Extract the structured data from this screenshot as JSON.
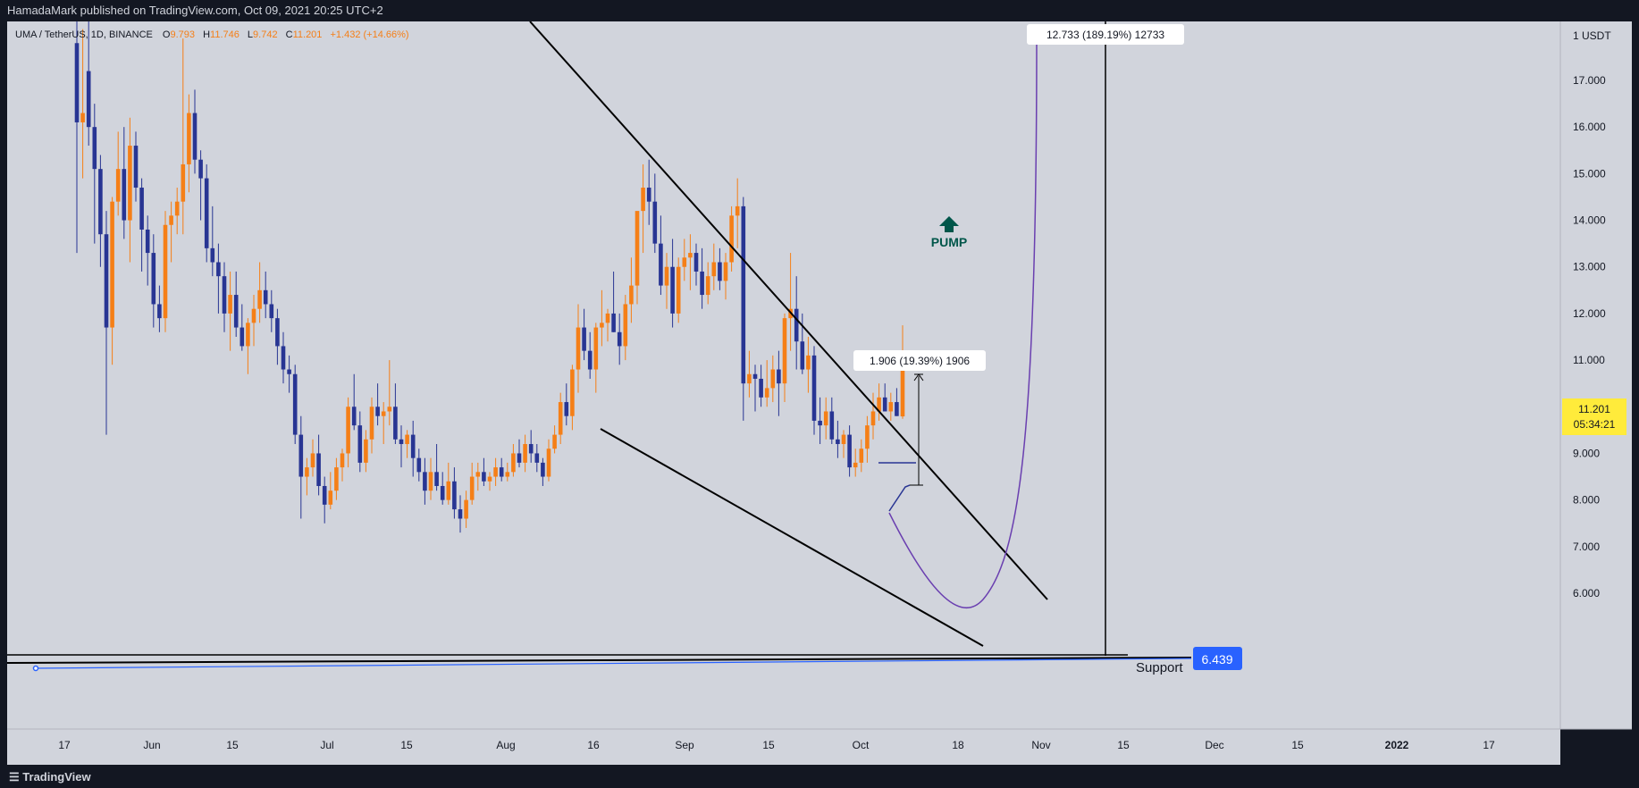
{
  "header": {
    "published": "HamadaMark published on TradingView.com, Oct 09, 2021 20:25 UTC+2"
  },
  "footer": {
    "brand": "TradingView"
  },
  "legend": {
    "symbol": "UMA / TetherUS, 1D, BINANCE",
    "open_label": "O",
    "open": "9.793",
    "high_label": "H",
    "high": "11.746",
    "low_label": "L",
    "low": "9.742",
    "close_label": "C",
    "close": "11.201",
    "change": "+1.432 (+14.66%)"
  },
  "price_axis": {
    "unit_label": "1 USDT",
    "ticks": [
      "17.000",
      "16.000",
      "15.000",
      "14.000",
      "13.000",
      "12.000",
      "11.000",
      "10.000",
      "9.000",
      "8.000",
      "7.000",
      "6.000"
    ],
    "current_price": "11.201",
    "countdown": "05:34:21",
    "support_price": "6.439"
  },
  "time_axis": {
    "ticks": [
      "17",
      "Jun",
      "15",
      "Jul",
      "15",
      "Aug",
      "16",
      "Sep",
      "15",
      "Oct",
      "18",
      "Nov",
      "15",
      "Dec",
      "15",
      "2022",
      "17"
    ]
  },
  "annotations": {
    "pump_text": "PUMP",
    "support_text": "Support",
    "measure_small": "1.906 (19.39%) 1906",
    "measure_big": "12.733 (189.19%) 12733"
  },
  "colors": {
    "background": "#d1d4dc",
    "up": "#f57f17",
    "down": "#283593",
    "pump": "#00564a",
    "projection": "#6a3fb0",
    "price_tag": "#ffeb3b",
    "support_tag": "#2962ff"
  },
  "chart_data": {
    "type": "candlestick",
    "symbol": "UMA / TetherUS",
    "interval": "1D",
    "exchange": "BINANCE",
    "y_axis_range": [
      5.4,
      18.2
    ],
    "y_scale": "linear",
    "grid": false,
    "candles": [
      {
        "o": 17.8,
        "h": 18.6,
        "l": 13.3,
        "c": 16.1
      },
      {
        "o": 16.1,
        "h": 18.1,
        "l": 14.9,
        "c": 16.3
      },
      {
        "o": 17.2,
        "h": 18.4,
        "l": 15.6,
        "c": 16.0
      },
      {
        "o": 16.0,
        "h": 16.5,
        "l": 13.5,
        "c": 15.1
      },
      {
        "o": 15.1,
        "h": 15.4,
        "l": 13.0,
        "c": 13.7
      },
      {
        "o": 13.7,
        "h": 14.2,
        "l": 9.4,
        "c": 11.7
      },
      {
        "o": 11.7,
        "h": 14.5,
        "l": 10.9,
        "c": 14.4
      },
      {
        "o": 14.4,
        "h": 15.9,
        "l": 14.1,
        "c": 15.1
      },
      {
        "o": 15.1,
        "h": 16.0,
        "l": 13.6,
        "c": 14.0
      },
      {
        "o": 14.0,
        "h": 16.2,
        "l": 13.1,
        "c": 15.6
      },
      {
        "o": 15.6,
        "h": 15.9,
        "l": 14.4,
        "c": 14.7
      },
      {
        "o": 14.7,
        "h": 14.9,
        "l": 12.9,
        "c": 13.8
      },
      {
        "o": 13.8,
        "h": 14.1,
        "l": 12.6,
        "c": 13.3
      },
      {
        "o": 13.3,
        "h": 13.7,
        "l": 11.7,
        "c": 12.2
      },
      {
        "o": 12.2,
        "h": 12.6,
        "l": 11.6,
        "c": 11.9
      },
      {
        "o": 11.9,
        "h": 14.2,
        "l": 11.6,
        "c": 13.9
      },
      {
        "o": 13.9,
        "h": 14.4,
        "l": 13.1,
        "c": 14.1
      },
      {
        "o": 14.1,
        "h": 14.7,
        "l": 13.7,
        "c": 14.4
      },
      {
        "o": 14.4,
        "h": 17.9,
        "l": 13.7,
        "c": 15.2
      },
      {
        "o": 15.2,
        "h": 16.7,
        "l": 14.6,
        "c": 16.3
      },
      {
        "o": 16.3,
        "h": 16.8,
        "l": 15.0,
        "c": 15.3
      },
      {
        "o": 15.3,
        "h": 15.5,
        "l": 14.0,
        "c": 14.9
      },
      {
        "o": 14.9,
        "h": 15.2,
        "l": 13.1,
        "c": 13.4
      },
      {
        "o": 13.4,
        "h": 14.3,
        "l": 12.8,
        "c": 13.1
      },
      {
        "o": 13.1,
        "h": 13.5,
        "l": 12.0,
        "c": 12.8
      },
      {
        "o": 12.8,
        "h": 13.1,
        "l": 11.6,
        "c": 12.0
      },
      {
        "o": 12.0,
        "h": 12.9,
        "l": 11.2,
        "c": 12.4
      },
      {
        "o": 12.4,
        "h": 12.9,
        "l": 11.5,
        "c": 11.7
      },
      {
        "o": 11.7,
        "h": 12.2,
        "l": 11.2,
        "c": 11.3
      },
      {
        "o": 11.3,
        "h": 11.9,
        "l": 10.7,
        "c": 11.8
      },
      {
        "o": 11.8,
        "h": 12.4,
        "l": 11.3,
        "c": 12.1
      },
      {
        "o": 12.1,
        "h": 13.1,
        "l": 11.8,
        "c": 12.5
      },
      {
        "o": 12.5,
        "h": 12.9,
        "l": 11.9,
        "c": 12.2
      },
      {
        "o": 12.2,
        "h": 12.5,
        "l": 11.6,
        "c": 11.9
      },
      {
        "o": 11.9,
        "h": 12.1,
        "l": 10.9,
        "c": 11.3
      },
      {
        "o": 11.3,
        "h": 11.6,
        "l": 10.5,
        "c": 10.8
      },
      {
        "o": 10.8,
        "h": 11.1,
        "l": 10.3,
        "c": 10.7
      },
      {
        "o": 10.7,
        "h": 10.9,
        "l": 9.2,
        "c": 9.4
      },
      {
        "o": 9.4,
        "h": 9.8,
        "l": 7.6,
        "c": 8.5
      },
      {
        "o": 8.5,
        "h": 8.9,
        "l": 8.1,
        "c": 8.7
      },
      {
        "o": 8.7,
        "h": 9.3,
        "l": 8.5,
        "c": 9.0
      },
      {
        "o": 9.0,
        "h": 9.4,
        "l": 8.1,
        "c": 8.3
      },
      {
        "o": 8.3,
        "h": 8.5,
        "l": 7.5,
        "c": 7.9
      },
      {
        "o": 7.9,
        "h": 8.6,
        "l": 7.8,
        "c": 8.2
      },
      {
        "o": 8.2,
        "h": 8.9,
        "l": 8.0,
        "c": 8.7
      },
      {
        "o": 8.7,
        "h": 9.1,
        "l": 8.4,
        "c": 9.0
      },
      {
        "o": 9.0,
        "h": 10.2,
        "l": 8.7,
        "c": 10.0
      },
      {
        "o": 10.0,
        "h": 10.7,
        "l": 9.5,
        "c": 9.6
      },
      {
        "o": 9.6,
        "h": 9.9,
        "l": 8.6,
        "c": 8.8
      },
      {
        "o": 8.8,
        "h": 9.5,
        "l": 8.6,
        "c": 9.3
      },
      {
        "o": 9.3,
        "h": 10.2,
        "l": 9.0,
        "c": 10.0
      },
      {
        "o": 10.0,
        "h": 10.5,
        "l": 9.6,
        "c": 9.8
      },
      {
        "o": 9.8,
        "h": 10.1,
        "l": 9.2,
        "c": 9.9
      },
      {
        "o": 9.9,
        "h": 11.0,
        "l": 9.6,
        "c": 10.0
      },
      {
        "o": 10.0,
        "h": 10.5,
        "l": 9.2,
        "c": 9.3
      },
      {
        "o": 9.3,
        "h": 9.6,
        "l": 8.7,
        "c": 9.2
      },
      {
        "o": 9.2,
        "h": 9.5,
        "l": 8.9,
        "c": 9.4
      },
      {
        "o": 9.4,
        "h": 9.7,
        "l": 8.5,
        "c": 8.9
      },
      {
        "o": 8.9,
        "h": 9.1,
        "l": 8.4,
        "c": 8.6
      },
      {
        "o": 8.6,
        "h": 8.9,
        "l": 7.9,
        "c": 8.2
      },
      {
        "o": 8.2,
        "h": 8.9,
        "l": 8.0,
        "c": 8.6
      },
      {
        "o": 8.6,
        "h": 9.2,
        "l": 8.2,
        "c": 8.3
      },
      {
        "o": 8.3,
        "h": 8.6,
        "l": 7.9,
        "c": 8.0
      },
      {
        "o": 8.0,
        "h": 8.8,
        "l": 7.9,
        "c": 8.4
      },
      {
        "o": 8.4,
        "h": 8.7,
        "l": 7.6,
        "c": 7.8
      },
      {
        "o": 7.8,
        "h": 8.1,
        "l": 7.3,
        "c": 7.6
      },
      {
        "o": 7.6,
        "h": 8.2,
        "l": 7.4,
        "c": 8.0
      },
      {
        "o": 8.0,
        "h": 8.8,
        "l": 7.9,
        "c": 8.5
      },
      {
        "o": 8.5,
        "h": 8.8,
        "l": 8.2,
        "c": 8.6
      },
      {
        "o": 8.6,
        "h": 8.9,
        "l": 8.3,
        "c": 8.4
      },
      {
        "o": 8.4,
        "h": 8.6,
        "l": 8.2,
        "c": 8.5
      },
      {
        "o": 8.5,
        "h": 8.9,
        "l": 8.3,
        "c": 8.7
      },
      {
        "o": 8.7,
        "h": 8.9,
        "l": 8.4,
        "c": 8.5
      },
      {
        "o": 8.5,
        "h": 8.8,
        "l": 8.4,
        "c": 8.6
      },
      {
        "o": 8.6,
        "h": 9.2,
        "l": 8.5,
        "c": 9.0
      },
      {
        "o": 9.0,
        "h": 9.3,
        "l": 8.7,
        "c": 8.8
      },
      {
        "o": 8.8,
        "h": 9.4,
        "l": 8.6,
        "c": 9.2
      },
      {
        "o": 9.2,
        "h": 9.5,
        "l": 8.8,
        "c": 9.0
      },
      {
        "o": 9.0,
        "h": 9.2,
        "l": 8.6,
        "c": 8.8
      },
      {
        "o": 8.8,
        "h": 8.9,
        "l": 8.3,
        "c": 8.5
      },
      {
        "o": 8.5,
        "h": 9.3,
        "l": 8.4,
        "c": 9.1
      },
      {
        "o": 9.1,
        "h": 9.6,
        "l": 9.0,
        "c": 9.4
      },
      {
        "o": 9.4,
        "h": 10.3,
        "l": 9.2,
        "c": 10.1
      },
      {
        "o": 10.1,
        "h": 10.5,
        "l": 9.6,
        "c": 9.8
      },
      {
        "o": 9.8,
        "h": 10.9,
        "l": 9.5,
        "c": 10.8
      },
      {
        "o": 10.8,
        "h": 12.2,
        "l": 10.3,
        "c": 11.7
      },
      {
        "o": 11.7,
        "h": 12.1,
        "l": 11.0,
        "c": 11.2
      },
      {
        "o": 11.2,
        "h": 11.6,
        "l": 10.6,
        "c": 10.8
      },
      {
        "o": 10.8,
        "h": 11.8,
        "l": 10.3,
        "c": 11.7
      },
      {
        "o": 11.7,
        "h": 12.5,
        "l": 11.3,
        "c": 11.8
      },
      {
        "o": 11.8,
        "h": 12.1,
        "l": 11.4,
        "c": 12.0
      },
      {
        "o": 12.0,
        "h": 12.9,
        "l": 11.6,
        "c": 11.6
      },
      {
        "o": 11.6,
        "h": 12.0,
        "l": 10.9,
        "c": 11.3
      },
      {
        "o": 11.3,
        "h": 12.4,
        "l": 11.0,
        "c": 12.2
      },
      {
        "o": 12.2,
        "h": 13.2,
        "l": 11.8,
        "c": 12.6
      },
      {
        "o": 12.6,
        "h": 14.1,
        "l": 12.2,
        "c": 14.2
      },
      {
        "o": 14.2,
        "h": 15.2,
        "l": 13.3,
        "c": 14.7
      },
      {
        "o": 14.7,
        "h": 15.3,
        "l": 13.9,
        "c": 14.4
      },
      {
        "o": 14.4,
        "h": 15.0,
        "l": 13.3,
        "c": 13.5
      },
      {
        "o": 13.5,
        "h": 14.1,
        "l": 12.4,
        "c": 12.6
      },
      {
        "o": 12.6,
        "h": 13.3,
        "l": 12.1,
        "c": 13.0
      },
      {
        "o": 13.0,
        "h": 13.6,
        "l": 11.7,
        "c": 12.0
      },
      {
        "o": 12.0,
        "h": 13.2,
        "l": 11.8,
        "c": 13.0
      },
      {
        "o": 13.0,
        "h": 13.6,
        "l": 12.7,
        "c": 13.2
      },
      {
        "o": 13.2,
        "h": 13.7,
        "l": 12.5,
        "c": 13.3
      },
      {
        "o": 13.3,
        "h": 13.5,
        "l": 12.6,
        "c": 12.9
      },
      {
        "o": 12.9,
        "h": 13.4,
        "l": 12.1,
        "c": 12.4
      },
      {
        "o": 12.4,
        "h": 13.1,
        "l": 12.2,
        "c": 12.8
      },
      {
        "o": 12.8,
        "h": 13.5,
        "l": 12.5,
        "c": 13.1
      },
      {
        "o": 13.1,
        "h": 13.4,
        "l": 12.5,
        "c": 12.7
      },
      {
        "o": 12.7,
        "h": 13.3,
        "l": 12.3,
        "c": 13.1
      },
      {
        "o": 13.1,
        "h": 14.3,
        "l": 12.9,
        "c": 14.1
      },
      {
        "o": 14.1,
        "h": 14.9,
        "l": 13.4,
        "c": 14.3
      },
      {
        "o": 14.3,
        "h": 14.5,
        "l": 9.7,
        "c": 10.5
      },
      {
        "o": 10.5,
        "h": 11.2,
        "l": 10.2,
        "c": 10.7
      },
      {
        "o": 10.7,
        "h": 10.9,
        "l": 9.9,
        "c": 10.6
      },
      {
        "o": 10.6,
        "h": 10.9,
        "l": 10.0,
        "c": 10.2
      },
      {
        "o": 10.2,
        "h": 11.0,
        "l": 10.0,
        "c": 10.4
      },
      {
        "o": 10.4,
        "h": 11.1,
        "l": 10.1,
        "c": 10.8
      },
      {
        "o": 10.8,
        "h": 11.2,
        "l": 9.8,
        "c": 10.5
      },
      {
        "o": 10.5,
        "h": 12.0,
        "l": 10.1,
        "c": 11.9
      },
      {
        "o": 11.9,
        "h": 13.3,
        "l": 11.2,
        "c": 12.1
      },
      {
        "o": 12.1,
        "h": 12.8,
        "l": 10.8,
        "c": 11.4
      },
      {
        "o": 11.4,
        "h": 12.0,
        "l": 10.7,
        "c": 10.8
      },
      {
        "o": 10.8,
        "h": 11.5,
        "l": 10.3,
        "c": 11.1
      },
      {
        "o": 11.1,
        "h": 11.3,
        "l": 9.4,
        "c": 9.7
      },
      {
        "o": 9.7,
        "h": 10.2,
        "l": 9.2,
        "c": 9.6
      },
      {
        "o": 9.6,
        "h": 10.2,
        "l": 9.3,
        "c": 9.9
      },
      {
        "o": 9.9,
        "h": 10.2,
        "l": 9.2,
        "c": 9.3
      },
      {
        "o": 9.3,
        "h": 9.7,
        "l": 8.9,
        "c": 9.2
      },
      {
        "o": 9.2,
        "h": 9.5,
        "l": 8.9,
        "c": 9.4
      },
      {
        "o": 9.4,
        "h": 9.6,
        "l": 8.5,
        "c": 8.7
      },
      {
        "o": 8.7,
        "h": 9.1,
        "l": 8.5,
        "c": 8.8
      },
      {
        "o": 8.8,
        "h": 9.3,
        "l": 8.6,
        "c": 9.1
      },
      {
        "o": 9.1,
        "h": 9.8,
        "l": 8.8,
        "c": 9.6
      },
      {
        "o": 9.6,
        "h": 10.3,
        "l": 9.3,
        "c": 9.9
      },
      {
        "o": 9.9,
        "h": 10.5,
        "l": 9.7,
        "c": 10.2
      },
      {
        "o": 10.2,
        "h": 10.5,
        "l": 9.9,
        "c": 9.9
      },
      {
        "o": 9.9,
        "h": 10.3,
        "l": 9.7,
        "c": 10.1
      },
      {
        "o": 10.1,
        "h": 10.4,
        "l": 9.8,
        "c": 9.8
      },
      {
        "o": 9.793,
        "h": 11.746,
        "l": 9.742,
        "c": 11.201
      }
    ]
  }
}
